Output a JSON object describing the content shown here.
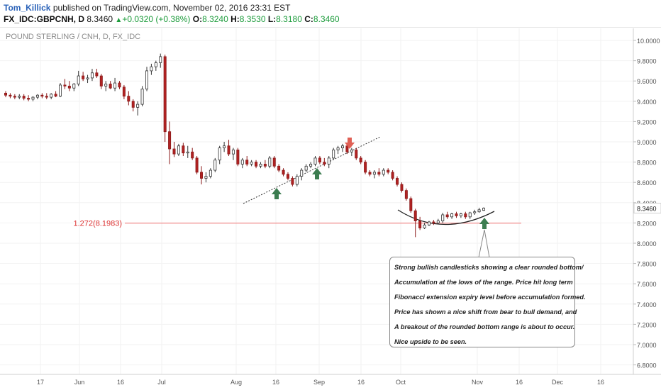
{
  "header": {
    "author": "Tom_Killick",
    "published_text": "published on TradingView.com, November 02, 2016 23:31 EST",
    "symbol": "FX_IDC:GBPCNH, D",
    "last": "8.3460",
    "change": "+0.0320 (+0.38%)",
    "ohlc": [
      {
        "label": "O:",
        "value": "8.3240"
      },
      {
        "label": "H:",
        "value": "8.3530"
      },
      {
        "label": "L:",
        "value": "8.3180"
      },
      {
        "label": "C:",
        "value": "8.3460"
      }
    ]
  },
  "chart_title": "POUND STERLING / CNH, D, FX_IDC",
  "annotation": {
    "lines": [
      "Strong bullish candlesticks showing a clear rounded bottom/",
      "Accumulation at the lows of the range. Price hit long term",
      "Fibonacci extension expiry level before accumulation formed.",
      "Price has shown a nice shift from bear to bull demand, and",
      "A breakout of the rounded bottom range is about to occur.",
      "Nice upside to be seen."
    ]
  },
  "chart_data": {
    "type": "candlestick",
    "title": "POUND STERLING / CNH, D, FX_IDC",
    "y_axis": {
      "range": [
        6.7,
        10.1
      ],
      "ticks": [
        "10.0000",
        "9.8000",
        "9.6000",
        "9.4000",
        "9.2000",
        "9.0000",
        "8.8000",
        "8.6000",
        "8.4000",
        "8.2000",
        "8.0000",
        "7.8000",
        "7.6000",
        "7.4000",
        "7.2000",
        "7.0000",
        "6.8000"
      ],
      "last_price_label": "8.3460",
      "last_price": 8.346,
      "position": "right"
    },
    "x_axis": {
      "labels": [
        "17",
        "Jun",
        "16",
        "Jul",
        "Aug",
        "16",
        "Sep",
        "16",
        "Oct",
        "Nov",
        "16",
        "Dec",
        "16"
      ]
    },
    "fib_level": {
      "label": "1.272(8.1983)",
      "value": 8.1983,
      "color": "#f08a8a"
    },
    "colors": {
      "up": "#ffffff",
      "down": "#b22222",
      "up_border": "#333333",
      "arrow_up": "#3c7d50",
      "arrow_down": "#e06055"
    },
    "candles": [
      [
        9.48,
        9.5,
        9.44,
        9.46
      ],
      [
        9.46,
        9.48,
        9.43,
        9.45
      ],
      [
        9.45,
        9.47,
        9.42,
        9.44
      ],
      [
        9.44,
        9.47,
        9.42,
        9.45
      ],
      [
        9.45,
        9.47,
        9.41,
        9.43
      ],
      [
        9.43,
        9.46,
        9.4,
        9.42
      ],
      [
        9.42,
        9.45,
        9.4,
        9.44
      ],
      [
        9.44,
        9.47,
        9.42,
        9.46
      ],
      [
        9.46,
        9.48,
        9.43,
        9.45
      ],
      [
        9.45,
        9.48,
        9.42,
        9.44
      ],
      [
        9.44,
        9.48,
        9.42,
        9.47
      ],
      [
        9.47,
        9.5,
        9.44,
        9.45
      ],
      [
        9.45,
        9.58,
        9.44,
        9.56
      ],
      [
        9.56,
        9.62,
        9.52,
        9.55
      ],
      [
        9.55,
        9.6,
        9.5,
        9.53
      ],
      [
        9.53,
        9.58,
        9.5,
        9.57
      ],
      [
        9.57,
        9.7,
        9.55,
        9.65
      ],
      [
        9.65,
        9.69,
        9.6,
        9.62
      ],
      [
        9.62,
        9.66,
        9.58,
        9.63
      ],
      [
        9.63,
        9.72,
        9.6,
        9.68
      ],
      [
        9.68,
        9.72,
        9.63,
        9.65
      ],
      [
        9.65,
        9.67,
        9.52,
        9.55
      ],
      [
        9.55,
        9.6,
        9.5,
        9.57
      ],
      [
        9.57,
        9.6,
        9.52,
        9.53
      ],
      [
        9.53,
        9.63,
        9.5,
        9.58
      ],
      [
        9.58,
        9.6,
        9.52,
        9.54
      ],
      [
        9.54,
        9.56,
        9.42,
        9.45
      ],
      [
        9.45,
        9.5,
        9.36,
        9.4
      ],
      [
        9.4,
        9.42,
        9.3,
        9.34
      ],
      [
        9.34,
        9.4,
        9.26,
        9.37
      ],
      [
        9.37,
        9.55,
        9.35,
        9.52
      ],
      [
        9.52,
        9.74,
        9.5,
        9.7
      ],
      [
        9.7,
        9.77,
        9.66,
        9.74
      ],
      [
        9.74,
        9.8,
        9.7,
        9.78
      ],
      [
        9.78,
        9.87,
        9.73,
        9.84
      ],
      [
        9.84,
        9.86,
        9.0,
        9.1
      ],
      [
        9.1,
        9.2,
        8.78,
        8.93
      ],
      [
        8.93,
        9.0,
        8.85,
        8.88
      ],
      [
        8.88,
        8.98,
        8.86,
        8.96
      ],
      [
        8.96,
        8.99,
        8.86,
        8.89
      ],
      [
        8.89,
        8.96,
        8.84,
        8.9
      ],
      [
        8.9,
        8.94,
        8.82,
        8.84
      ],
      [
        8.84,
        8.86,
        8.68,
        8.7
      ],
      [
        8.7,
        8.76,
        8.58,
        8.64
      ],
      [
        8.64,
        8.7,
        8.6,
        8.66
      ],
      [
        8.66,
        8.74,
        8.64,
        8.72
      ],
      [
        8.72,
        8.84,
        8.7,
        8.82
      ],
      [
        8.82,
        8.96,
        8.78,
        8.94
      ],
      [
        8.94,
        9.0,
        8.9,
        8.96
      ],
      [
        8.96,
        9.02,
        8.86,
        8.88
      ],
      [
        8.88,
        8.94,
        8.82,
        8.92
      ],
      [
        8.92,
        8.94,
        8.76,
        8.78
      ],
      [
        8.78,
        8.84,
        8.74,
        8.82
      ],
      [
        8.82,
        8.86,
        8.76,
        8.78
      ],
      [
        8.78,
        8.82,
        8.76,
        8.8
      ],
      [
        8.8,
        8.82,
        8.74,
        8.76
      ],
      [
        8.76,
        8.8,
        8.74,
        8.78
      ],
      [
        8.78,
        8.82,
        8.74,
        8.76
      ],
      [
        8.76,
        8.86,
        8.74,
        8.84
      ],
      [
        8.84,
        8.86,
        8.74,
        8.76
      ],
      [
        8.76,
        8.78,
        8.7,
        8.72
      ],
      [
        8.72,
        8.74,
        8.66,
        8.68
      ],
      [
        8.68,
        8.7,
        8.62,
        8.64
      ],
      [
        8.64,
        8.66,
        8.56,
        8.58
      ],
      [
        8.58,
        8.68,
        8.56,
        8.66
      ],
      [
        8.66,
        8.74,
        8.62,
        8.72
      ],
      [
        8.72,
        8.78,
        8.7,
        8.76
      ],
      [
        8.76,
        8.8,
        8.74,
        8.78
      ],
      [
        8.78,
        8.86,
        8.76,
        8.84
      ],
      [
        8.84,
        8.86,
        8.78,
        8.8
      ],
      [
        8.8,
        8.84,
        8.76,
        8.78
      ],
      [
        8.78,
        8.86,
        8.74,
        8.84
      ],
      [
        8.84,
        8.94,
        8.82,
        8.92
      ],
      [
        8.92,
        8.96,
        8.88,
        8.94
      ],
      [
        8.94,
        8.98,
        8.9,
        8.96
      ],
      [
        8.96,
        8.98,
        8.88,
        8.9
      ],
      [
        8.9,
        8.94,
        8.86,
        8.92
      ],
      [
        8.92,
        8.94,
        8.82,
        8.84
      ],
      [
        8.84,
        8.86,
        8.78,
        8.8
      ],
      [
        8.8,
        8.82,
        8.68,
        8.7
      ],
      [
        8.7,
        8.72,
        8.66,
        8.68
      ],
      [
        8.68,
        8.72,
        8.64,
        8.7
      ],
      [
        8.7,
        8.74,
        8.66,
        8.68
      ],
      [
        8.68,
        8.74,
        8.66,
        8.72
      ],
      [
        8.72,
        8.74,
        8.68,
        8.7
      ],
      [
        8.7,
        8.72,
        8.62,
        8.64
      ],
      [
        8.64,
        8.66,
        8.56,
        8.58
      ],
      [
        8.58,
        8.6,
        8.5,
        8.52
      ],
      [
        8.52,
        8.54,
        8.42,
        8.44
      ],
      [
        8.44,
        8.46,
        8.3,
        8.32
      ],
      [
        8.32,
        8.34,
        8.06,
        8.22
      ],
      [
        8.22,
        8.26,
        8.13,
        8.15
      ],
      [
        8.15,
        8.2,
        8.14,
        8.18
      ],
      [
        8.18,
        8.22,
        8.17,
        8.21
      ],
      [
        8.21,
        8.23,
        8.18,
        8.2
      ],
      [
        8.2,
        8.24,
        8.19,
        8.22
      ],
      [
        8.22,
        8.3,
        8.2,
        8.28
      ],
      [
        8.28,
        8.31,
        8.24,
        8.26
      ],
      [
        8.26,
        8.3,
        8.24,
        8.29
      ],
      [
        8.29,
        8.31,
        8.25,
        8.27
      ],
      [
        8.27,
        8.3,
        8.25,
        8.29
      ],
      [
        8.29,
        8.31,
        8.24,
        8.26
      ],
      [
        8.26,
        8.31,
        8.24,
        8.3
      ],
      [
        8.3,
        8.33,
        8.28,
        8.31
      ],
      [
        8.31,
        8.35,
        8.3,
        8.33
      ],
      [
        8.324,
        8.353,
        8.318,
        8.346
      ]
    ]
  }
}
